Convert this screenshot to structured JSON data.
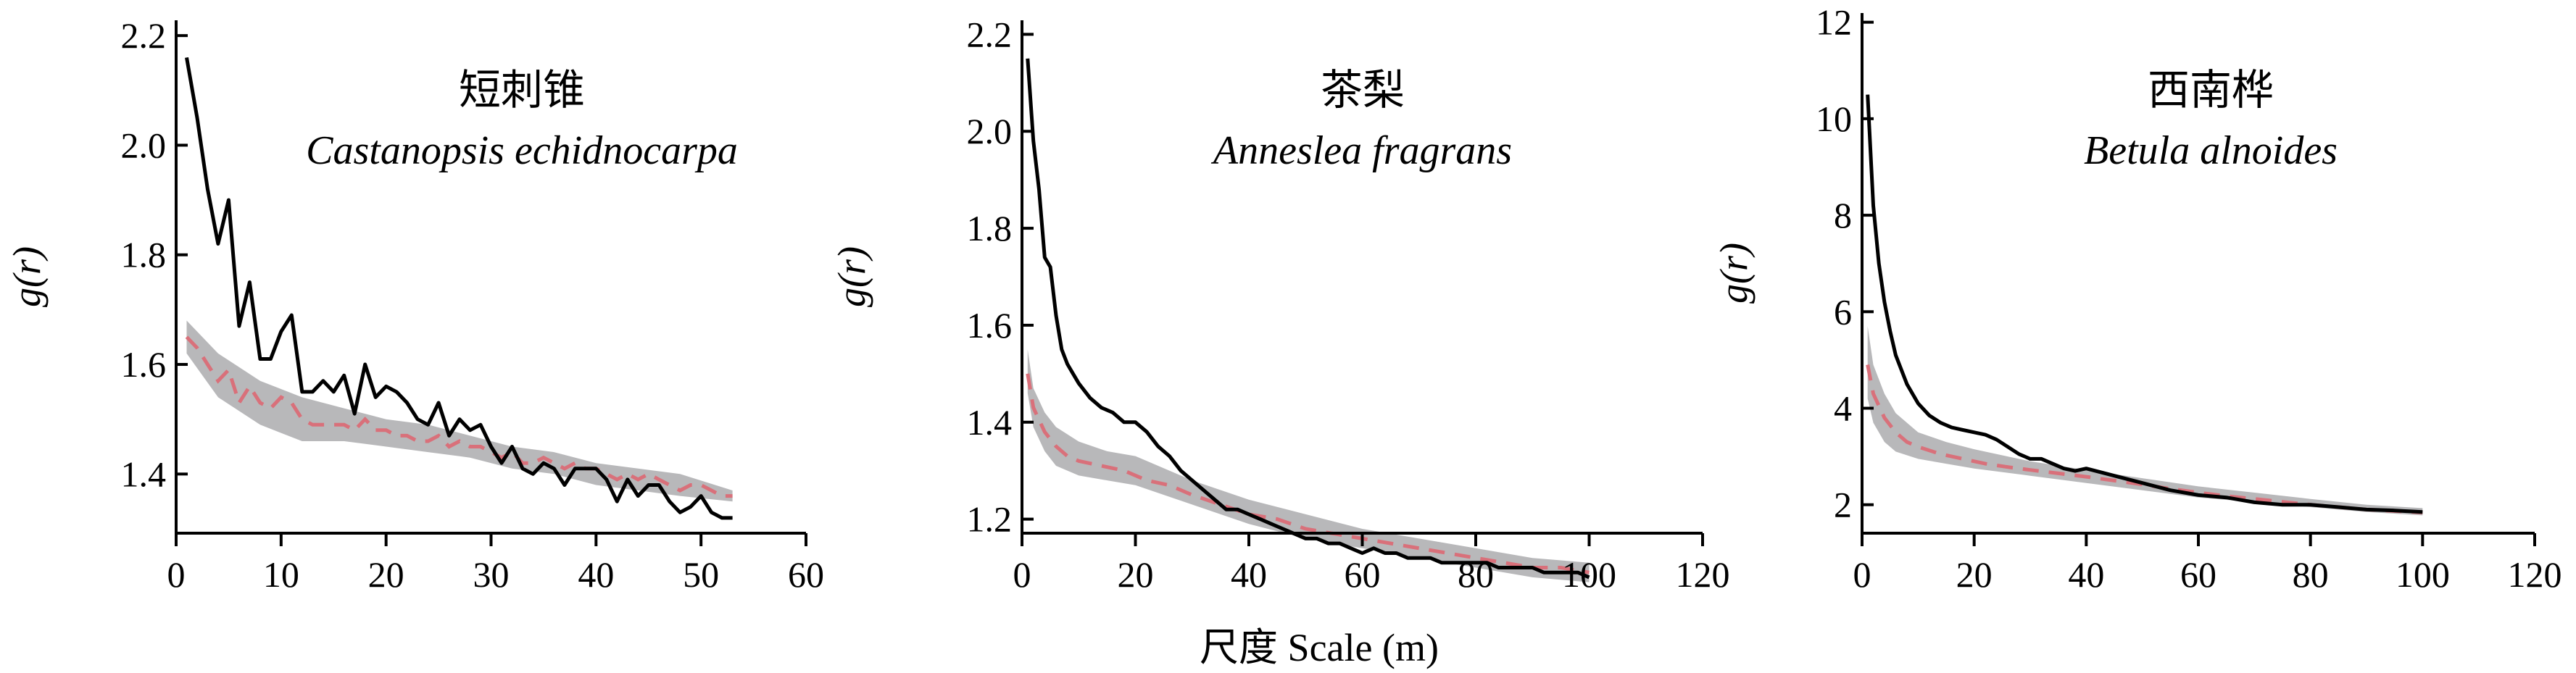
{
  "colors": {
    "observed": "#000000",
    "mean": "#d9707a",
    "envelope": "#b8b8ba"
  },
  "xlabel": "尺度 Scale (m)",
  "chart_data": [
    {
      "type": "line",
      "title_cn": "短刺锥",
      "title_latin": "Castanopsis echidnocarpa",
      "ylabel": "g(r)",
      "xlim": [
        0,
        60
      ],
      "ylim": [
        1.3,
        2.22
      ],
      "xticks": [
        0,
        10,
        20,
        30,
        40,
        50,
        60
      ],
      "yticks": [
        1.4,
        1.6,
        1.8,
        2.0,
        2.2
      ],
      "ytick_labels": [
        "1.4",
        "1.6",
        "1.8",
        "2.0",
        "2.2"
      ],
      "observed": {
        "x": [
          1,
          2,
          3,
          4,
          5,
          6,
          7,
          8,
          9,
          10,
          11,
          12,
          13,
          14,
          15,
          16,
          17,
          18,
          19,
          20,
          21,
          22,
          23,
          24,
          25,
          26,
          27,
          28,
          29,
          30,
          31,
          32,
          33,
          34,
          35,
          36,
          37,
          38,
          39,
          40,
          41,
          42,
          43,
          44,
          45,
          46,
          47,
          48,
          49,
          50,
          51,
          52,
          53
        ],
        "y": [
          2.16,
          2.05,
          1.92,
          1.82,
          1.9,
          1.67,
          1.75,
          1.61,
          1.61,
          1.66,
          1.69,
          1.55,
          1.55,
          1.57,
          1.55,
          1.58,
          1.51,
          1.6,
          1.54,
          1.56,
          1.55,
          1.53,
          1.5,
          1.49,
          1.53,
          1.47,
          1.5,
          1.48,
          1.49,
          1.45,
          1.42,
          1.45,
          1.41,
          1.4,
          1.42,
          1.41,
          1.38,
          1.41,
          1.41,
          1.41,
          1.39,
          1.35,
          1.39,
          1.36,
          1.38,
          1.38,
          1.35,
          1.33,
          1.34,
          1.36,
          1.33,
          1.32,
          1.32
        ]
      },
      "mean": {
        "x": [
          1,
          2,
          3,
          4,
          5,
          6,
          7,
          8,
          9,
          10,
          11,
          12,
          13,
          14,
          15,
          16,
          17,
          18,
          19,
          20,
          21,
          22,
          23,
          24,
          25,
          26,
          27,
          28,
          29,
          30,
          31,
          32,
          33,
          34,
          35,
          36,
          37,
          38,
          39,
          40,
          41,
          42,
          43,
          44,
          45,
          46,
          47,
          48,
          49,
          50,
          51,
          52,
          53
        ],
        "y": [
          1.65,
          1.63,
          1.6,
          1.57,
          1.59,
          1.53,
          1.56,
          1.53,
          1.52,
          1.54,
          1.53,
          1.5,
          1.49,
          1.49,
          1.49,
          1.49,
          1.48,
          1.5,
          1.48,
          1.48,
          1.47,
          1.47,
          1.46,
          1.46,
          1.47,
          1.45,
          1.46,
          1.45,
          1.45,
          1.44,
          1.43,
          1.44,
          1.42,
          1.42,
          1.43,
          1.42,
          1.41,
          1.42,
          1.41,
          1.41,
          1.4,
          1.39,
          1.4,
          1.39,
          1.4,
          1.39,
          1.38,
          1.37,
          1.38,
          1.38,
          1.37,
          1.36,
          1.36
        ]
      },
      "envelope": {
        "x": [
          1,
          4,
          8,
          12,
          16,
          20,
          24,
          28,
          32,
          36,
          40,
          44,
          48,
          53
        ],
        "upper": [
          1.68,
          1.62,
          1.57,
          1.54,
          1.52,
          1.5,
          1.49,
          1.47,
          1.45,
          1.44,
          1.42,
          1.41,
          1.4,
          1.37
        ],
        "lower": [
          1.62,
          1.54,
          1.49,
          1.46,
          1.46,
          1.45,
          1.44,
          1.43,
          1.41,
          1.4,
          1.38,
          1.37,
          1.36,
          1.35
        ]
      }
    },
    {
      "type": "line",
      "title_cn": "茶梨",
      "title_latin": "Anneslea fragrans",
      "ylabel": "g(r)",
      "xlim": [
        0,
        120
      ],
      "ylim": [
        1.18,
        2.22
      ],
      "xticks": [
        0,
        20,
        40,
        60,
        80,
        100,
        120
      ],
      "yticks": [
        1.2,
        1.4,
        1.6,
        1.8,
        2.0,
        2.2
      ],
      "ytick_labels": [
        "1.2",
        "1.4",
        "1.6",
        "1.8",
        "2.0",
        "2.2"
      ],
      "observed": {
        "x": [
          1,
          2,
          3,
          4,
          5,
          6,
          7,
          8,
          9,
          10,
          12,
          14,
          16,
          18,
          20,
          22,
          24,
          25,
          26,
          28,
          30,
          32,
          34,
          36,
          38,
          40,
          42,
          44,
          46,
          48,
          50,
          52,
          54,
          56,
          58,
          60,
          62,
          64,
          66,
          68,
          70,
          72,
          74,
          76,
          78,
          80,
          82,
          84,
          86,
          88,
          90,
          92,
          94,
          96,
          98,
          100
        ],
        "y": [
          2.15,
          1.98,
          1.88,
          1.74,
          1.72,
          1.62,
          1.55,
          1.52,
          1.5,
          1.48,
          1.45,
          1.43,
          1.42,
          1.4,
          1.4,
          1.38,
          1.35,
          1.34,
          1.33,
          1.3,
          1.28,
          1.26,
          1.24,
          1.22,
          1.22,
          1.21,
          1.2,
          1.19,
          1.18,
          1.17,
          1.16,
          1.16,
          1.15,
          1.15,
          1.14,
          1.13,
          1.14,
          1.13,
          1.13,
          1.12,
          1.12,
          1.12,
          1.11,
          1.11,
          1.11,
          1.11,
          1.11,
          1.1,
          1.1,
          1.1,
          1.1,
          1.09,
          1.09,
          1.09,
          1.09,
          1.08
        ]
      },
      "mean": {
        "x": [
          1,
          2,
          4,
          6,
          8,
          10,
          14,
          18,
          22,
          26,
          30,
          35,
          40,
          45,
          50,
          55,
          60,
          65,
          70,
          75,
          80,
          85,
          90,
          95,
          100
        ],
        "y": [
          1.5,
          1.43,
          1.38,
          1.35,
          1.33,
          1.32,
          1.31,
          1.3,
          1.28,
          1.27,
          1.25,
          1.23,
          1.21,
          1.2,
          1.18,
          1.17,
          1.16,
          1.15,
          1.14,
          1.13,
          1.12,
          1.11,
          1.1,
          1.1,
          1.09
        ]
      },
      "envelope": {
        "x": [
          1,
          2,
          4,
          6,
          10,
          15,
          20,
          30,
          40,
          50,
          60,
          70,
          80,
          90,
          100
        ],
        "upper": [
          1.55,
          1.47,
          1.42,
          1.39,
          1.36,
          1.34,
          1.33,
          1.28,
          1.24,
          1.21,
          1.18,
          1.16,
          1.14,
          1.12,
          1.11
        ],
        "lower": [
          1.46,
          1.39,
          1.34,
          1.31,
          1.29,
          1.28,
          1.27,
          1.23,
          1.19,
          1.16,
          1.14,
          1.12,
          1.1,
          1.08,
          1.07
        ]
      }
    },
    {
      "type": "line",
      "title_cn": "西南桦",
      "title_latin": "Betula alnoides",
      "ylabel": "g(r)",
      "xlim": [
        0,
        120
      ],
      "ylim": [
        1.5,
        12.1
      ],
      "xticks": [
        0,
        20,
        40,
        60,
        80,
        100,
        120
      ],
      "yticks": [
        2,
        4,
        6,
        8,
        10,
        12
      ],
      "ytick_labels": [
        "2",
        "4",
        "6",
        "8",
        "10",
        "12"
      ],
      "observed": {
        "x": [
          1,
          2,
          3,
          4,
          5,
          6,
          8,
          10,
          12,
          14,
          16,
          18,
          20,
          22,
          24,
          26,
          28,
          30,
          32,
          34,
          36,
          38,
          40,
          45,
          50,
          55,
          60,
          65,
          70,
          75,
          80,
          85,
          90,
          95,
          100
        ],
        "y": [
          10.5,
          8.2,
          7.0,
          6.2,
          5.6,
          5.1,
          4.5,
          4.1,
          3.85,
          3.7,
          3.6,
          3.55,
          3.5,
          3.45,
          3.35,
          3.2,
          3.05,
          2.95,
          2.95,
          2.85,
          2.75,
          2.7,
          2.75,
          2.6,
          2.45,
          2.3,
          2.2,
          2.15,
          2.05,
          2.0,
          2.0,
          1.95,
          1.9,
          1.88,
          1.85
        ]
      },
      "mean": {
        "x": [
          1,
          2,
          4,
          6,
          8,
          10,
          14,
          18,
          22,
          26,
          30,
          35,
          40,
          45,
          50,
          55,
          60,
          65,
          70,
          75,
          80,
          85,
          90,
          95,
          100
        ],
        "y": [
          4.9,
          4.3,
          3.8,
          3.5,
          3.3,
          3.2,
          3.05,
          2.95,
          2.85,
          2.78,
          2.72,
          2.65,
          2.58,
          2.5,
          2.42,
          2.33,
          2.25,
          2.18,
          2.12,
          2.06,
          2.0,
          1.95,
          1.9,
          1.87,
          1.84
        ]
      },
      "envelope": {
        "x": [
          1,
          2,
          4,
          6,
          10,
          15,
          20,
          30,
          40,
          50,
          60,
          70,
          80,
          90,
          100
        ],
        "upper": [
          5.7,
          4.9,
          4.3,
          3.9,
          3.5,
          3.3,
          3.15,
          2.9,
          2.72,
          2.55,
          2.38,
          2.25,
          2.12,
          2.0,
          1.93
        ],
        "lower": [
          4.2,
          3.7,
          3.3,
          3.1,
          2.95,
          2.85,
          2.75,
          2.6,
          2.45,
          2.3,
          2.15,
          2.05,
          1.95,
          1.85,
          1.78
        ]
      }
    }
  ]
}
